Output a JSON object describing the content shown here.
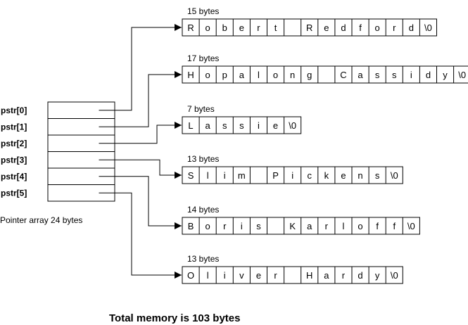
{
  "pointer_labels": [
    "pstr[0]",
    "pstr[1]",
    "pstr[2]",
    "pstr[3]",
    "pstr[4]",
    "pstr[5]"
  ],
  "pointer_array_caption": "Pointer array 24 bytes",
  "strings": [
    {
      "size_label": "15 bytes",
      "chars": [
        "R",
        "o",
        "b",
        "e",
        "r",
        "t",
        " ",
        "R",
        "e",
        "d",
        "f",
        "o",
        "r",
        "d",
        "\\0"
      ]
    },
    {
      "size_label": "17 bytes",
      "chars": [
        "H",
        "o",
        "p",
        "a",
        "l",
        "o",
        "n",
        "g",
        " ",
        "C",
        "a",
        "s",
        "s",
        "i",
        "d",
        "y",
        "\\0"
      ]
    },
    {
      "size_label": "7 bytes",
      "chars": [
        "L",
        "a",
        "s",
        "s",
        "i",
        "e",
        "\\0"
      ]
    },
    {
      "size_label": "13 bytes",
      "chars": [
        "S",
        "l",
        "i",
        "m",
        " ",
        "P",
        "i",
        "c",
        "k",
        "e",
        "n",
        "s",
        "\\0"
      ]
    },
    {
      "size_label": "14 bytes",
      "chars": [
        "B",
        "o",
        "r",
        "i",
        "s",
        " ",
        "K",
        "a",
        "r",
        "l",
        "o",
        "f",
        "f",
        "\\0"
      ]
    },
    {
      "size_label": "13 bytes",
      "chars": [
        "O",
        "l",
        "i",
        "v",
        "e",
        "r",
        " ",
        "H",
        "a",
        "r",
        "d",
        "y",
        "\\0"
      ]
    }
  ],
  "total_label": "Total memory is 103 bytes"
}
